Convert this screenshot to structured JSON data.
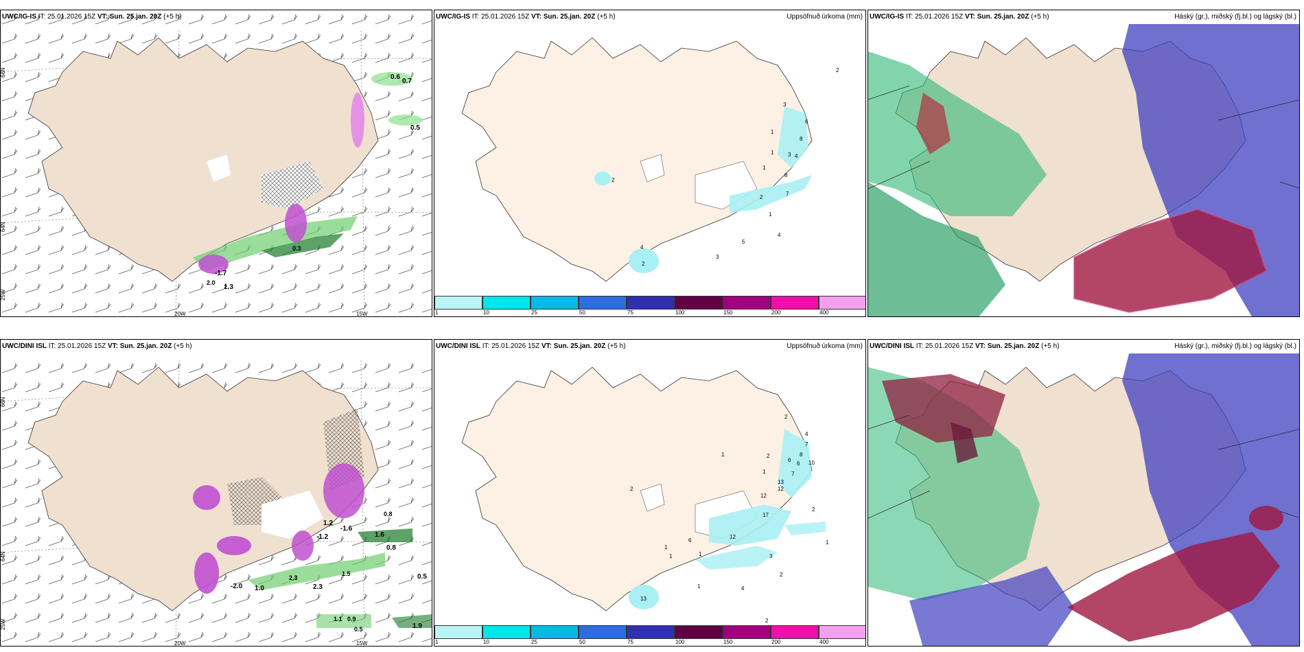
{
  "panels": [
    {
      "model": "UWC/IG-IS",
      "it_label": "IT:",
      "it_value": "25.01.2026 15Z",
      "vt_label": "VT:",
      "vt_value": "Sun. 25.jan. 20Z",
      "lead": "(+5 h)",
      "right_title": ""
    },
    {
      "model": "UWC/IG-IS",
      "it_label": "IT:",
      "it_value": "25.01.2026 15Z",
      "vt_label": "VT:",
      "vt_value": "Sun. 25.jan. 20Z",
      "lead": "(+5 h)",
      "right_title": "Uppsöfnuð úrkoma (mm)"
    },
    {
      "model": "UWC/IG-IS",
      "it_label": "IT:",
      "it_value": "25.01.2026 15Z",
      "vt_label": "VT:",
      "vt_value": "Sun. 25.jan. 20Z",
      "lead": "(+5 h)",
      "right_title": "Háský (gr.), miðský (fj.bl.) og lágský (bl.)"
    },
    {
      "model": "UWC/DINI ISL",
      "it_label": "IT:",
      "it_value": "25.01.2026 15Z",
      "vt_label": "VT:",
      "vt_value": "Sun. 25.jan. 20Z",
      "lead": "(+5 h)",
      "right_title": ""
    },
    {
      "model": "UWC/DINI ISL",
      "it_label": "IT:",
      "it_value": "25.01.2026 15Z",
      "vt_label": "VT:",
      "vt_value": "Sun. 25.jan. 20Z",
      "lead": "(+5 h)",
      "right_title": "Uppsöfnuð úrkoma (mm)"
    },
    {
      "model": "UWC/DINI ISL",
      "it_label": "IT:",
      "it_value": "25.01.2026 15Z",
      "vt_label": "VT:",
      "vt_value": "Sun. 25.jan. 20Z",
      "lead": "(+5 h)",
      "right_title": "Háský (gr.), miðský (fj.bl.) og lágský (bl.)"
    }
  ],
  "axis_labels": {
    "lon_20w": "20W",
    "lon_15w": "15W",
    "lat_66n": "66N",
    "lat_64n": "64N",
    "lat_25w": "25W"
  },
  "precip_scale": {
    "colors": [
      "#b8f4f4",
      "#00e6ea",
      "#0ab8e8",
      "#2d6de0",
      "#3030b0",
      "#600045",
      "#a00080",
      "#ee10a8",
      "#f5a0ee"
    ],
    "ticks": [
      "1",
      "10",
      "25",
      "50",
      "75",
      "100",
      "150",
      "200",
      "400"
    ]
  },
  "temp_labels_top": [
    "0.6",
    "0.7",
    "0.5",
    "-1.7",
    "1.3",
    "0.3",
    "2.0"
  ],
  "temp_labels_bottom": [
    "1.2",
    "-1.2",
    "-1.6",
    "0.8",
    "1.6",
    "0.5",
    "-2.0",
    "1.0",
    "2.3",
    "1.1",
    "0.9",
    "0.5",
    "1.9",
    "1.5",
    "2.3",
    "0.8"
  ],
  "precip_labels_top": [
    "2",
    "3",
    "6",
    "8",
    "1",
    "3",
    "4",
    "8",
    "1",
    "7",
    "2",
    "4",
    "5",
    "3",
    "2",
    "2",
    "1",
    "4",
    "1"
  ],
  "precip_labels_bottom": [
    "2",
    "1",
    "4",
    "7",
    "2",
    "6",
    "6",
    "8",
    "10",
    "1",
    "7",
    "12",
    "13",
    "12",
    "2",
    "17",
    "12",
    "2",
    "6",
    "1",
    "1",
    "1",
    "3",
    "2",
    "1",
    "4",
    "1",
    "13",
    "2"
  ]
}
